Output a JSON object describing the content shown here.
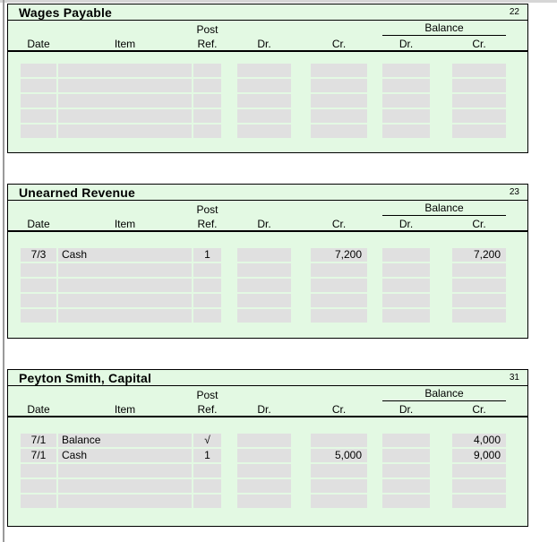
{
  "colors": {
    "table_background": "#e3f9e3",
    "input_cell_background": "#e0e0e0",
    "table_border": "#000000",
    "top_edge": "#d6d6d6",
    "left_edge": "#9a9a9a"
  },
  "headers": {
    "date": "Date",
    "item": "Item",
    "post_line1": "Post",
    "post_line2": "Ref.",
    "dr": "Dr.",
    "cr": "Cr.",
    "balance": "Balance",
    "balance_dr": "Dr.",
    "balance_cr": "Cr."
  },
  "accounts": [
    {
      "title": "Wages Payable",
      "number": "22",
      "rows": [
        {
          "date": "",
          "item": "",
          "ref": "",
          "dr": "",
          "cr": "",
          "bal_dr": "",
          "bal_cr": ""
        },
        {
          "date": "",
          "item": "",
          "ref": "",
          "dr": "",
          "cr": "",
          "bal_dr": "",
          "bal_cr": ""
        },
        {
          "date": "",
          "item": "",
          "ref": "",
          "dr": "",
          "cr": "",
          "bal_dr": "",
          "bal_cr": ""
        },
        {
          "date": "",
          "item": "",
          "ref": "",
          "dr": "",
          "cr": "",
          "bal_dr": "",
          "bal_cr": ""
        },
        {
          "date": "",
          "item": "",
          "ref": "",
          "dr": "",
          "cr": "",
          "bal_dr": "",
          "bal_cr": ""
        }
      ]
    },
    {
      "title": "Unearned Revenue",
      "number": "23",
      "rows": [
        {
          "date": "7/3",
          "item": "Cash",
          "ref": "1",
          "dr": "",
          "cr": "7,200",
          "bal_dr": "",
          "bal_cr": "7,200"
        },
        {
          "date": "",
          "item": "",
          "ref": "",
          "dr": "",
          "cr": "",
          "bal_dr": "",
          "bal_cr": ""
        },
        {
          "date": "",
          "item": "",
          "ref": "",
          "dr": "",
          "cr": "",
          "bal_dr": "",
          "bal_cr": ""
        },
        {
          "date": "",
          "item": "",
          "ref": "",
          "dr": "",
          "cr": "",
          "bal_dr": "",
          "bal_cr": ""
        },
        {
          "date": "",
          "item": "",
          "ref": "",
          "dr": "",
          "cr": "",
          "bal_dr": "",
          "bal_cr": ""
        }
      ]
    },
    {
      "title": "Peyton Smith, Capital",
      "number": "31",
      "rows": [
        {
          "date": "7/1",
          "item": "Balance",
          "ref": "√",
          "dr": "",
          "cr": "",
          "bal_dr": "",
          "bal_cr": "4,000"
        },
        {
          "date": "7/1",
          "item": "Cash",
          "ref": "1",
          "dr": "",
          "cr": "5,000",
          "bal_dr": "",
          "bal_cr": "9,000"
        },
        {
          "date": "",
          "item": "",
          "ref": "",
          "dr": "",
          "cr": "",
          "bal_dr": "",
          "bal_cr": ""
        },
        {
          "date": "",
          "item": "",
          "ref": "",
          "dr": "",
          "cr": "",
          "bal_dr": "",
          "bal_cr": ""
        },
        {
          "date": "",
          "item": "",
          "ref": "",
          "dr": "",
          "cr": "",
          "bal_dr": "",
          "bal_cr": ""
        }
      ]
    }
  ]
}
